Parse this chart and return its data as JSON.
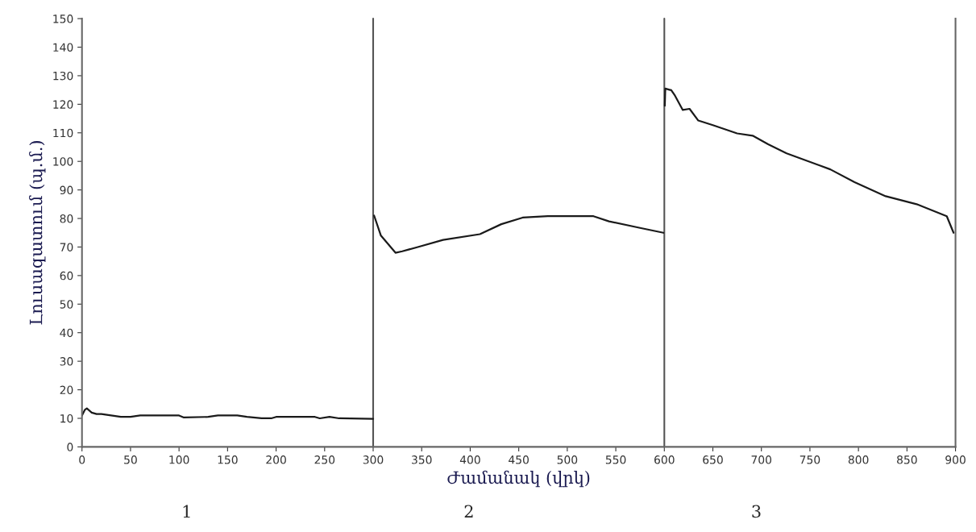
{
  "chart_data": {
    "type": "line",
    "xlabel": "Ժամանակ (վրկ)",
    "ylabel": "Լուսազատում (պ.մ.)",
    "series": [
      {
        "color": "#1a1a1a",
        "x": [
          0,
          3,
          5,
          10,
          15,
          20,
          30,
          40,
          50,
          60,
          100,
          105,
          130,
          140,
          160,
          170,
          185,
          195,
          200,
          240,
          245,
          255,
          265,
          300
        ],
        "values": [
          11,
          13,
          13.5,
          12,
          11.5,
          11.5,
          11,
          10.5,
          10.5,
          11,
          11,
          10.3,
          10.5,
          11,
          11,
          10.5,
          10,
          10,
          10.5,
          10.5,
          10,
          10.5,
          10,
          9.8
        ]
      },
      {
        "color": "#1a1a1a",
        "x": [
          301,
          308,
          323,
          330,
          346,
          372,
          410,
          432,
          454,
          480,
          527,
          543,
          575,
          599
        ],
        "values": [
          81,
          74,
          68,
          68.5,
          70,
          72.5,
          74.5,
          78,
          80.3,
          80.8,
          80.8,
          79,
          76.7,
          75
        ]
      },
      {
        "color": "#1a1a1a",
        "x": [
          600.5,
          601,
          606,
          607,
          611,
          619,
          626,
          635,
          650,
          675,
          691,
          707,
          726,
          771,
          796,
          828,
          860,
          891,
          898
        ],
        "values": [
          119.5,
          125.5,
          125,
          125,
          123,
          118,
          118.4,
          114.3,
          112.7,
          109.8,
          109,
          106,
          102.8,
          97.2,
          92.7,
          87.8,
          85,
          80.8,
          75
        ]
      }
    ],
    "xlim": [
      0,
      900
    ],
    "xticks": [
      0,
      50,
      100,
      150,
      200,
      250,
      300,
      350,
      400,
      450,
      500,
      550,
      600,
      650,
      700,
      750,
      800,
      850,
      900
    ],
    "ylim": [
      0,
      150
    ],
    "yticks": [
      0,
      10,
      20,
      30,
      40,
      50,
      60,
      70,
      80,
      90,
      100,
      110,
      120,
      130,
      140,
      150
    ],
    "ref_lines": [
      {
        "axis": "x",
        "value": 300,
        "color": "#555555"
      },
      {
        "axis": "x",
        "value": 600,
        "color": "#555555"
      }
    ],
    "annotations": [
      "1",
      "2",
      "3"
    ],
    "grid": false,
    "legend": false
  }
}
